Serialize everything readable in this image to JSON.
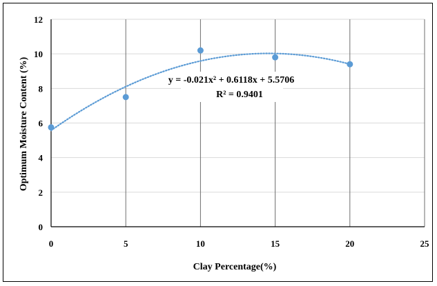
{
  "chart_data": {
    "type": "scatter",
    "xlabel": "Clay Percentage(%)",
    "ylabel": "Optimum Moisture Content (%)",
    "xlim": [
      0,
      25
    ],
    "ylim": [
      0,
      12
    ],
    "xticks": [
      0,
      5,
      10,
      15,
      20,
      25
    ],
    "yticks": [
      0,
      2,
      4,
      6,
      8,
      10,
      12
    ],
    "grid": true,
    "series": [
      {
        "x": [
          0,
          5,
          10,
          15,
          20
        ],
        "y": [
          5.75,
          7.5,
          10.2,
          9.8,
          9.4
        ],
        "color": "#5b9bd5"
      }
    ],
    "trendline": {
      "type": "polynomial",
      "order": 2,
      "coefficients": {
        "a": -0.021,
        "b": 0.6118,
        "c": 5.5706
      },
      "x_range": [
        0,
        20
      ],
      "style": "dotted",
      "color": "#5b9bd5",
      "equation": "y = -0.021x² + 0.6118x + 5.5706",
      "r_squared": "R² = 0.9401"
    }
  }
}
